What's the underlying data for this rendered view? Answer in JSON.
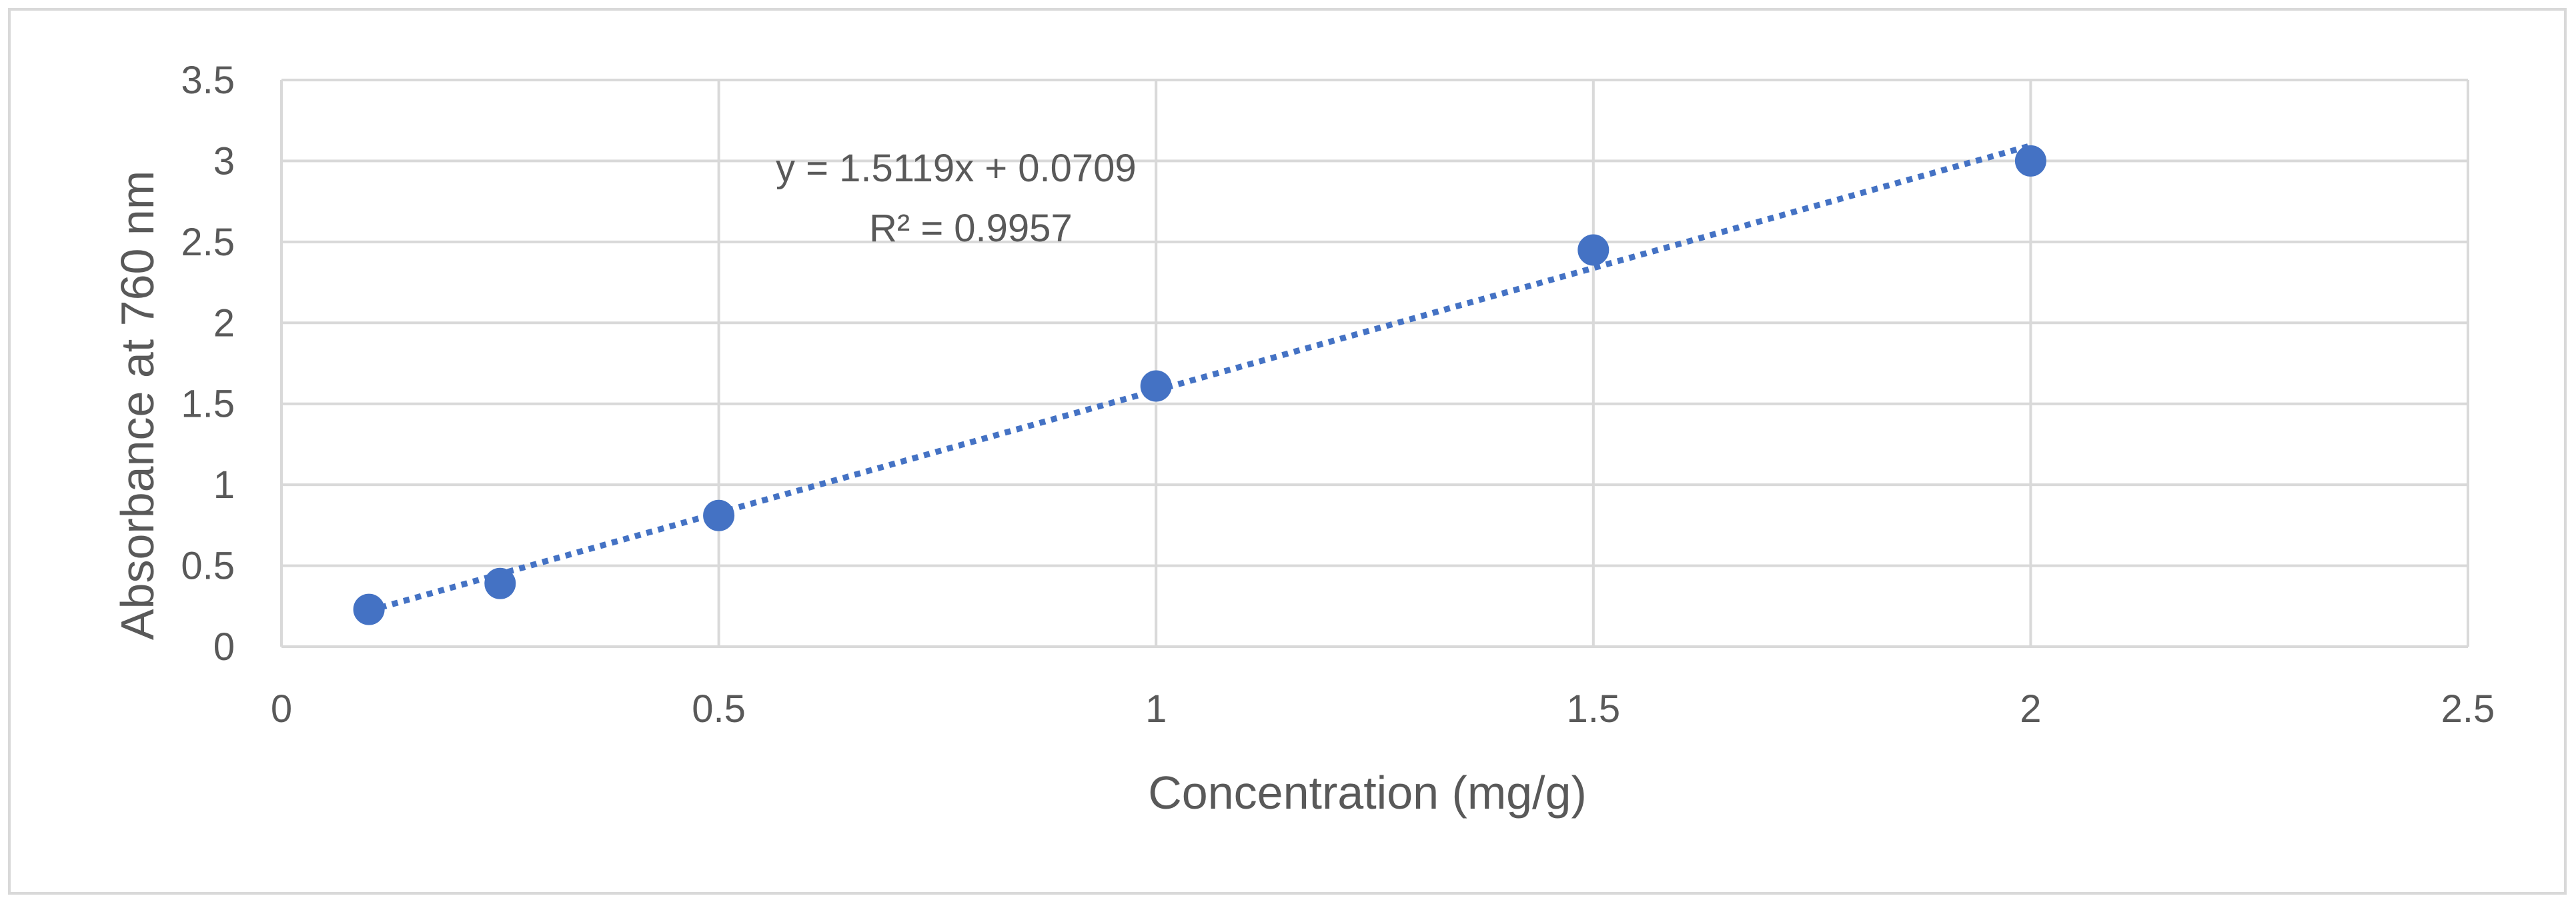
{
  "chart_data": {
    "type": "scatter",
    "title": "",
    "xlabel": "Concentration (mg/g)",
    "ylabel": "Absorbance at 760 nm",
    "xlim": [
      0,
      2.5
    ],
    "ylim": [
      0,
      3.5
    ],
    "x_ticks": [
      "0",
      "0.5",
      "1",
      "1.5",
      "2",
      "2.5"
    ],
    "y_ticks": [
      "0",
      "0.5",
      "1",
      "1.5",
      "2",
      "2.5",
      "3",
      "3.5"
    ],
    "grid": true,
    "series": [
      {
        "x": [
          0.1,
          0.25,
          0.5,
          1.0,
          1.5,
          2.0
        ],
        "y": [
          0.23,
          0.39,
          0.81,
          1.61,
          2.45,
          3.0
        ],
        "color": "#4472c4",
        "marker": "circle"
      }
    ],
    "trendline": {
      "type": "linear",
      "slope": 1.5119,
      "intercept": 0.0709,
      "x_range": [
        0.1,
        2.0
      ],
      "style": "dotted",
      "color": "#4472c4",
      "equation_label": "y = 1.5119x + 0.0709",
      "r2_label": "R² = 0.9957"
    },
    "colors": {
      "grid": "#d9d9d9",
      "text": "#595959",
      "frame": "#d9d9d9"
    }
  }
}
